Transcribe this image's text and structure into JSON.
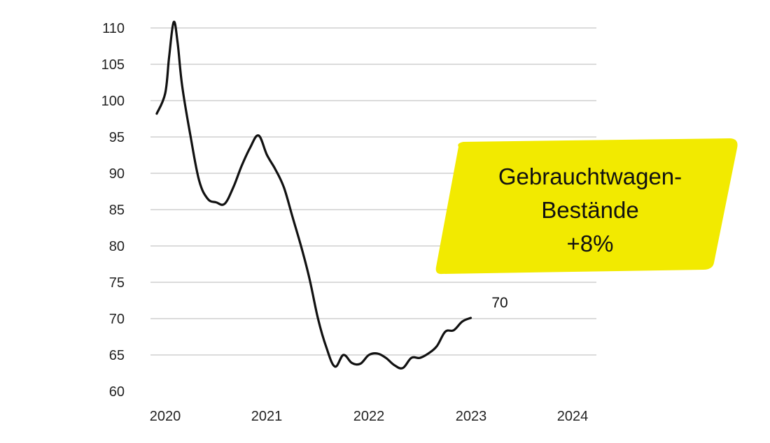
{
  "chart_data": {
    "type": "line",
    "title": "",
    "xlabel": "",
    "ylabel": "",
    "ylim": [
      60,
      110
    ],
    "yticks": [
      "60",
      "65",
      "70",
      "75",
      "80",
      "85",
      "90",
      "95",
      "100",
      "105",
      "110"
    ],
    "xticks": [
      "2020",
      "2021",
      "2022",
      "2023",
      "2024"
    ],
    "grid": true,
    "series": [
      {
        "color": "#111111",
        "points": [
          [
            "2019-12-01",
            98.2
          ],
          [
            "2020-01-01",
            101
          ],
          [
            "2020-01-15",
            106
          ],
          [
            "2020-02-01",
            110.8
          ],
          [
            "2020-02-15",
            108
          ],
          [
            "2020-03-01",
            102
          ],
          [
            "2020-04-01",
            95
          ],
          [
            "2020-05-01",
            89
          ],
          [
            "2020-06-01",
            86.5
          ],
          [
            "2020-07-01",
            86
          ],
          [
            "2020-08-01",
            85.8
          ],
          [
            "2020-09-01",
            88
          ],
          [
            "2020-10-01",
            91
          ],
          [
            "2020-11-01",
            93.5
          ],
          [
            "2020-12-01",
            95.2
          ],
          [
            "2021-01-01",
            92.5
          ],
          [
            "2021-02-01",
            90.5
          ],
          [
            "2021-03-01",
            88
          ],
          [
            "2021-04-01",
            84
          ],
          [
            "2021-05-01",
            80
          ],
          [
            "2021-06-01",
            75.5
          ],
          [
            "2021-07-01",
            70
          ],
          [
            "2021-08-01",
            66
          ],
          [
            "2021-09-01",
            63.4
          ],
          [
            "2021-10-01",
            65
          ],
          [
            "2021-11-01",
            63.9
          ],
          [
            "2021-12-01",
            63.8
          ],
          [
            "2022-01-01",
            65.0
          ],
          [
            "2022-02-01",
            65.2
          ],
          [
            "2022-03-01",
            64.6
          ],
          [
            "2022-04-01",
            63.6
          ],
          [
            "2022-05-01",
            63.2
          ],
          [
            "2022-06-01",
            64.6
          ],
          [
            "2022-07-01",
            64.6
          ],
          [
            "2022-08-01",
            65.2
          ],
          [
            "2022-09-01",
            66.2
          ],
          [
            "2022-10-01",
            68.2
          ],
          [
            "2022-11-01",
            68.4
          ],
          [
            "2022-12-01",
            69.6
          ],
          [
            "2023-01-01",
            70.1
          ]
        ]
      }
    ],
    "annotations": [
      {
        "label": "70"
      }
    ]
  },
  "callout": {
    "line1": "Gebrauchtwagen-",
    "line2": "Bestände",
    "line3": "+8%",
    "background": "#f2ea00",
    "text_color": "#111111"
  }
}
